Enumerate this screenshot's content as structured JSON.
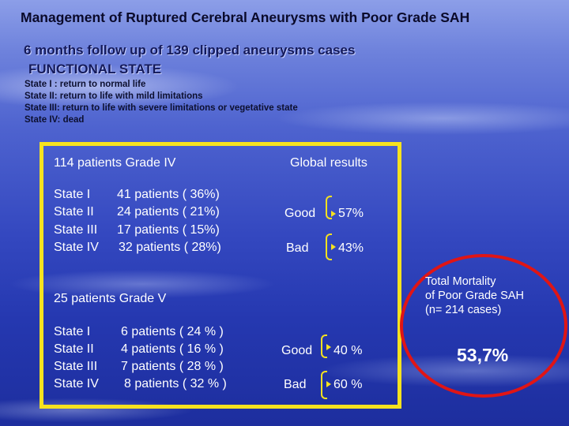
{
  "title": "Management of Ruptured Cerebral Aneurysms with Poor Grade SAH",
  "subtitle": "6 months follow up of 139 clipped aneurysms cases",
  "section_title": "FUNCTIONAL  STATE",
  "definitions": [
    "State I : return to normal life",
    "State II: return to life with mild limitations",
    "State III: return to life with severe limitations or vegetative state",
    "State IV: dead"
  ],
  "grade4": {
    "heading": "114 patients Grade IV",
    "states": [
      "State I",
      "State II",
      "State III",
      "State IV"
    ],
    "patients": [
      "41 patients ( 36%)",
      "24 patients ( 21%)",
      "17 patients ( 15%)",
      "32 patients ( 28%)"
    ],
    "outcome_good_label": "Good",
    "outcome_good_value": "57%",
    "outcome_bad_label": "Bad",
    "outcome_bad_value": "43%"
  },
  "global_results_label": "Global results",
  "grade5": {
    "heading": "25 patients Grade  V",
    "states": [
      "State I",
      "State II",
      "State III",
      "State IV"
    ],
    "patients": [
      "6 patients ( 24 % )",
      "4 patients ( 16 % )",
      "7 patients ( 28 % )",
      "8 patients ( 32 % )"
    ],
    "outcome_good_label": "Good",
    "outcome_good_value": "40 %",
    "outcome_bad_label": "Bad",
    "outcome_bad_value": "60 %"
  },
  "mortality": {
    "lines": [
      "Total Mortality",
      "of Poor Grade SAH",
      "(n= 214 cases)"
    ],
    "value": "53,7%"
  },
  "colors": {
    "frame": "#f6e21f",
    "oval": "#e01515",
    "text": "#ffffff"
  }
}
